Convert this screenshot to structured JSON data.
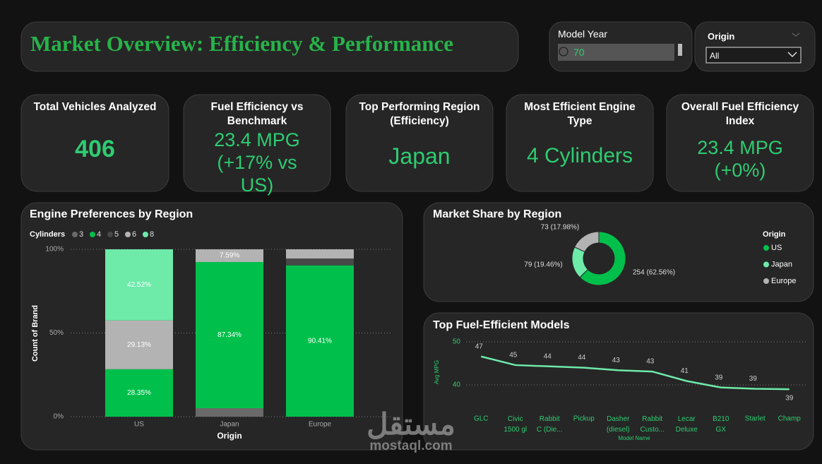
{
  "header": {
    "title": "Market Overview: Efficiency & Performance"
  },
  "filters": {
    "model_year": {
      "label": "Model Year",
      "value": "70"
    },
    "origin": {
      "label": "Origin",
      "value": "All"
    }
  },
  "kpis": [
    {
      "title": "Total Vehicles Analyzed",
      "value": "406"
    },
    {
      "title": "Fuel Efficiency vs Benchmark",
      "value": "23.4 MPG",
      "note": "(+17% vs US)"
    },
    {
      "title": "Top Performing Region (Efficiency)",
      "value": "Japan"
    },
    {
      "title": "Most Efficient Engine Type",
      "value": "4 Cylinders"
    },
    {
      "title": "Overall Fuel Efficiency Index",
      "value": "23.4 MPG",
      "note": "(+0%)"
    }
  ],
  "watermark": {
    "arabic": "مستقل",
    "latin": "mostaql.com"
  },
  "chart_data": [
    {
      "type": "bar",
      "stacked": true,
      "title": "Engine Preferences by Region",
      "legend_title": "Cylinders",
      "categories": [
        "US",
        "Japan",
        "Europe"
      ],
      "series": [
        {
          "name": "3",
          "color": "#6a6a6a",
          "values": [
            null,
            5.06,
            null
          ]
        },
        {
          "name": "4",
          "color": "#00c04b",
          "values": [
            28.35,
            87.34,
            90.41
          ],
          "value_labels": [
            "28.35%",
            "87.34%",
            "90.41%"
          ]
        },
        {
          "name": "5",
          "color": "#484848",
          "values": [
            null,
            null,
            4.11
          ]
        },
        {
          "name": "6",
          "color": "#b3b3b3",
          "values": [
            29.13,
            7.59,
            5.48
          ],
          "value_labels": [
            "29.13%",
            "7.59%",
            null
          ]
        },
        {
          "name": "8",
          "color": "#6eeaa9",
          "values": [
            42.52,
            null,
            null
          ],
          "value_labels": [
            "42.52%",
            null,
            null
          ]
        }
      ],
      "y_label": "Count of Brand",
      "x_label": "Origin",
      "ylim": [
        0,
        100
      ],
      "yticks": [
        {
          "value": 0,
          "label": "0%"
        },
        {
          "value": 50,
          "label": "50%"
        },
        {
          "value": 100,
          "label": "100%"
        }
      ],
      "grid": true
    },
    {
      "type": "donut",
      "title": "Market Share by Region",
      "legend_title": "Origin",
      "categories": [
        "US",
        "Japan",
        "Europe"
      ],
      "values": [
        254,
        79,
        73
      ],
      "value_labels": [
        "254 (62.56%)",
        "79 (19.46%)",
        "73 (17.98%)"
      ],
      "colors": [
        "#00c04b",
        "#6eeaa9",
        "#b3b3b3"
      ]
    },
    {
      "type": "line",
      "title": "Top Fuel-Efficient Models",
      "categories": [
        "GLC",
        "Civic 1500 gl",
        "Rabbit C (Die...",
        "Pickup",
        "Dasher (diesel)",
        "Rabbit Custo...",
        "Lecar Deluxe",
        "B210 GX",
        "Starlet",
        "Champ"
      ],
      "values": [
        46.6,
        44.6,
        44.3,
        44.0,
        43.4,
        43.1,
        40.9,
        39.4,
        39.1,
        39.0
      ],
      "value_labels": [
        "47",
        "45",
        "44",
        "44",
        "43",
        "43",
        "41",
        "39",
        "39",
        "39"
      ],
      "color": "#6eeaa9",
      "y_label": "Avg MPG",
      "x_label": "Model Name",
      "ylim": [
        35,
        50
      ],
      "yticks": [
        40,
        50
      ],
      "grid": true
    }
  ]
}
